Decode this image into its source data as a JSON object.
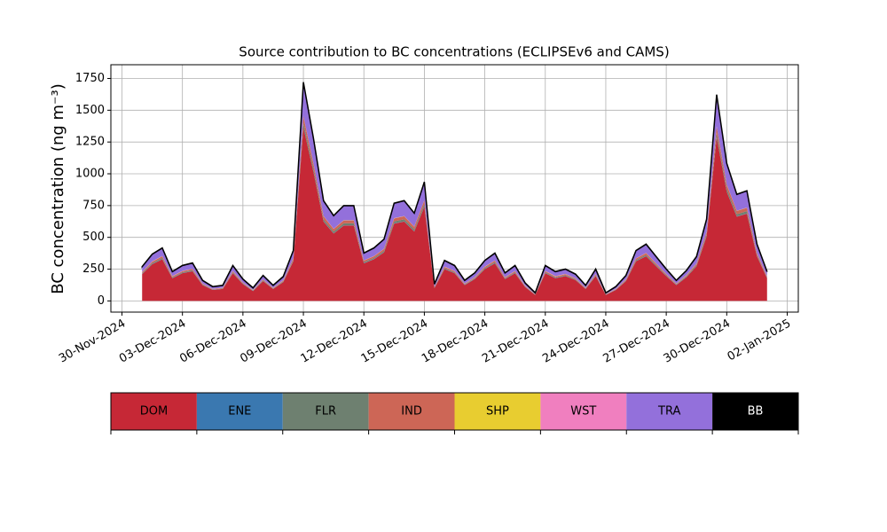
{
  "chart_data": {
    "type": "stacked_area",
    "title": "Source contribution to BC concentrations (ECLIPSEv6 and CAMS)",
    "ylabel": "BC concentration (ng m⁻³)",
    "x": [
      "2024-12-01T00:00",
      "2024-12-01T12:00",
      "2024-12-02T00:00",
      "2024-12-02T12:00",
      "2024-12-03T00:00",
      "2024-12-03T12:00",
      "2024-12-04T00:00",
      "2024-12-04T12:00",
      "2024-12-05T00:00",
      "2024-12-05T12:00",
      "2024-12-06T00:00",
      "2024-12-06T12:00",
      "2024-12-07T00:00",
      "2024-12-07T12:00",
      "2024-12-08T00:00",
      "2024-12-08T12:00",
      "2024-12-09T00:00",
      "2024-12-09T12:00",
      "2024-12-10T00:00",
      "2024-12-10T12:00",
      "2024-12-11T00:00",
      "2024-12-11T12:00",
      "2024-12-12T00:00",
      "2024-12-12T12:00",
      "2024-12-13T00:00",
      "2024-12-13T12:00",
      "2024-12-14T00:00",
      "2024-12-14T12:00",
      "2024-12-15T00:00",
      "2024-12-15T12:00",
      "2024-12-16T00:00",
      "2024-12-16T12:00",
      "2024-12-17T00:00",
      "2024-12-17T12:00",
      "2024-12-18T00:00",
      "2024-12-18T12:00",
      "2024-12-19T00:00",
      "2024-12-19T12:00",
      "2024-12-20T00:00",
      "2024-12-20T12:00",
      "2024-12-21T00:00",
      "2024-12-21T12:00",
      "2024-12-22T00:00",
      "2024-12-22T12:00",
      "2024-12-23T00:00",
      "2024-12-23T12:00",
      "2024-12-24T00:00",
      "2024-12-24T12:00",
      "2024-12-25T00:00",
      "2024-12-25T12:00",
      "2024-12-26T00:00",
      "2024-12-26T12:00",
      "2024-12-27T00:00",
      "2024-12-27T12:00",
      "2024-12-28T00:00",
      "2024-12-28T12:00",
      "2024-12-29T00:00",
      "2024-12-29T12:00",
      "2024-12-30T00:00",
      "2024-12-30T12:00",
      "2024-12-31T00:00",
      "2024-12-31T12:00",
      "2025-01-01T00:00"
    ],
    "series": [
      {
        "name": "DOM",
        "color": "#c62836",
        "values": [
          211,
          289,
          328,
          179,
          218,
          234,
          125,
          86,
          94,
          218,
          133,
          78,
          156,
          94,
          148,
          312,
          1365,
          1014,
          624,
          530,
          593,
          593,
          296,
          328,
          382,
          608,
          624,
          546,
          741,
          101,
          250,
          218,
          125,
          172,
          250,
          296,
          172,
          218,
          109,
          47,
          218,
          179,
          195,
          164,
          94,
          195,
          47,
          86,
          156,
          312,
          351,
          273,
          195,
          125,
          187,
          273,
          507,
          1287,
          858,
          663,
          686,
          351,
          179
        ]
      },
      {
        "name": "ENE",
        "color": "#3a78b0",
        "values": [
          2,
          2,
          2,
          2,
          2,
          2,
          2,
          2,
          2,
          2,
          2,
          2,
          2,
          2,
          2,
          2,
          2,
          2,
          2,
          2,
          2,
          2,
          2,
          2,
          2,
          2,
          2,
          2,
          2,
          2,
          2,
          2,
          2,
          2,
          2,
          2,
          2,
          2,
          2,
          2,
          2,
          2,
          2,
          2,
          2,
          2,
          2,
          2,
          2,
          2,
          2,
          2,
          2,
          2,
          2,
          2,
          2,
          2,
          2,
          2,
          2,
          2,
          2
        ]
      },
      {
        "name": "FLR",
        "color": "#6e8070",
        "values": [
          5,
          7,
          8,
          5,
          6,
          6,
          3,
          2,
          2,
          6,
          3,
          2,
          4,
          2,
          4,
          8,
          35,
          26,
          16,
          14,
          15,
          15,
          8,
          8,
          10,
          16,
          16,
          14,
          19,
          3,
          6,
          6,
          3,
          4,
          6,
          8,
          4,
          6,
          3,
          1,
          6,
          5,
          5,
          4,
          2,
          5,
          1,
          2,
          4,
          8,
          9,
          7,
          5,
          3,
          5,
          7,
          13,
          33,
          22,
          17,
          18,
          9,
          5
        ]
      },
      {
        "name": "IND",
        "color": "#cd6656",
        "values": [
          8,
          11,
          13,
          7,
          8,
          9,
          5,
          3,
          4,
          8,
          5,
          3,
          6,
          4,
          6,
          12,
          53,
          39,
          24,
          20,
          23,
          23,
          11,
          13,
          15,
          23,
          24,
          21,
          29,
          4,
          10,
          8,
          5,
          7,
          10,
          11,
          7,
          8,
          4,
          2,
          8,
          7,
          8,
          6,
          4,
          8,
          2,
          3,
          6,
          12,
          14,
          11,
          8,
          5,
          7,
          11,
          20,
          50,
          33,
          26,
          26,
          14,
          7
        ]
      },
      {
        "name": "SHP",
        "color": "#e8cd30",
        "values": [
          1,
          1,
          1,
          1,
          1,
          1,
          1,
          1,
          1,
          1,
          1,
          1,
          1,
          1,
          1,
          1,
          1,
          1,
          1,
          1,
          1,
          1,
          1,
          1,
          1,
          1,
          1,
          1,
          1,
          1,
          1,
          1,
          1,
          1,
          1,
          1,
          1,
          1,
          1,
          1,
          1,
          1,
          1,
          1,
          1,
          1,
          1,
          1,
          1,
          1,
          1,
          1,
          1,
          1,
          1,
          1,
          1,
          1,
          1,
          1,
          1,
          1,
          1
        ]
      },
      {
        "name": "WST",
        "color": "#f07fbf",
        "values": [
          1,
          1,
          1,
          1,
          1,
          1,
          1,
          1,
          1,
          1,
          1,
          1,
          1,
          1,
          1,
          1,
          1,
          1,
          1,
          1,
          1,
          1,
          1,
          1,
          1,
          1,
          1,
          1,
          1,
          1,
          1,
          1,
          1,
          1,
          1,
          1,
          1,
          1,
          1,
          1,
          1,
          1,
          1,
          1,
          1,
          1,
          1,
          1,
          1,
          1,
          1,
          1,
          1,
          1,
          1,
          1,
          1,
          1,
          1,
          1,
          1,
          1,
          1
        ]
      },
      {
        "name": "TRA",
        "color": "#9370db",
        "values": [
          41,
          56,
          63,
          35,
          42,
          45,
          24,
          17,
          18,
          42,
          26,
          15,
          30,
          18,
          29,
          60,
          263,
          195,
          120,
          102,
          114,
          114,
          57,
          63,
          74,
          117,
          120,
          105,
          143,
          20,
          48,
          42,
          24,
          33,
          48,
          57,
          33,
          42,
          21,
          9,
          42,
          35,
          38,
          32,
          18,
          38,
          9,
          17,
          30,
          60,
          68,
          53,
          38,
          24,
          36,
          53,
          98,
          248,
          165,
          128,
          132,
          68,
          35
        ]
      },
      {
        "name": "BB",
        "color": "#000000",
        "values": [
          1,
          1,
          1,
          1,
          1,
          1,
          1,
          1,
          1,
          1,
          1,
          1,
          1,
          1,
          1,
          1,
          1,
          1,
          1,
          1,
          1,
          1,
          1,
          1,
          1,
          1,
          1,
          1,
          1,
          1,
          1,
          1,
          1,
          1,
          1,
          1,
          1,
          1,
          1,
          1,
          1,
          1,
          1,
          1,
          1,
          1,
          1,
          1,
          1,
          1,
          1,
          1,
          1,
          1,
          1,
          1,
          1,
          1,
          1,
          1,
          1,
          1,
          1
        ]
      }
    ],
    "xlim": [
      "2024-11-29T10:48",
      "2025-01-02T13:12"
    ],
    "xticks": [
      {
        "value": "2024-11-30T00:00",
        "label": "30-Nov-2024"
      },
      {
        "value": "2024-12-03T00:00",
        "label": "03-Dec-2024"
      },
      {
        "value": "2024-12-06T00:00",
        "label": "06-Dec-2024"
      },
      {
        "value": "2024-12-09T00:00",
        "label": "09-Dec-2024"
      },
      {
        "value": "2024-12-12T00:00",
        "label": "12-Dec-2024"
      },
      {
        "value": "2024-12-15T00:00",
        "label": "15-Dec-2024"
      },
      {
        "value": "2024-12-18T00:00",
        "label": "18-Dec-2024"
      },
      {
        "value": "2024-12-21T00:00",
        "label": "21-Dec-2024"
      },
      {
        "value": "2024-12-24T00:00",
        "label": "24-Dec-2024"
      },
      {
        "value": "2024-12-27T00:00",
        "label": "27-Dec-2024"
      },
      {
        "value": "2024-12-30T00:00",
        "label": "30-Dec-2024"
      },
      {
        "value": "2025-01-02T00:00",
        "label": "02-Jan-2025"
      }
    ],
    "ylim": [
      -88,
      1858
    ],
    "yticks": [
      0,
      250,
      500,
      750,
      1000,
      1250,
      1500,
      1750
    ],
    "grid": true
  }
}
